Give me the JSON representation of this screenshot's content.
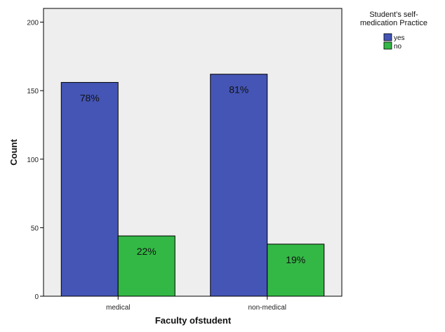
{
  "chart_data": {
    "type": "bar",
    "categories": [
      "medical",
      "non-medical"
    ],
    "series": [
      {
        "name": "yes",
        "color": "#4455b5",
        "values": [
          156,
          162
        ],
        "labels": [
          "78%",
          "81%"
        ]
      },
      {
        "name": "no",
        "color": "#33b845",
        "values": [
          44,
          38
        ],
        "labels": [
          "22%",
          "19%"
        ]
      }
    ],
    "xlabel": "Faculty ofstudent",
    "ylabel": "Count",
    "ylim": [
      0,
      210
    ],
    "yticks": [
      0,
      50,
      100,
      150,
      200
    ],
    "grid": false,
    "plot_background": "#eeeeee",
    "legend": {
      "title_lines": [
        "Student's self-",
        "medication Practice"
      ],
      "placement": "right"
    }
  }
}
